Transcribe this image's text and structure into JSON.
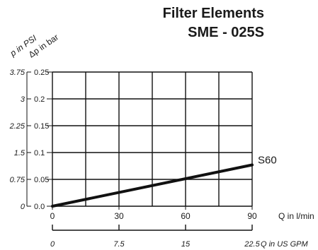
{
  "title": "Filter Elements",
  "subtitle": "SME - 025S",
  "chart_data": {
    "type": "line",
    "title": "Filter Elements SME - 025S",
    "x_axis": {
      "label": "Q in l/min",
      "range": [
        0,
        90
      ],
      "ticks": [
        0,
        30,
        60,
        90
      ]
    },
    "x_axis_secondary": {
      "label": "Q in US GPM",
      "range": [
        0,
        22.5
      ],
      "ticks": [
        "0",
        "7.5",
        "15",
        "22.5"
      ]
    },
    "y_axis": {
      "label": "Δp in bar",
      "range": [
        0,
        0.25
      ],
      "ticks": [
        "0.0",
        "0.05",
        "0.1",
        "0.15",
        "0.2",
        "0.25"
      ]
    },
    "y_axis_secondary": {
      "label": "p in PSI",
      "range": [
        0,
        3.75
      ],
      "ticks": [
        "0",
        "0.75",
        "1.5",
        "2.25",
        "3",
        "3.75"
      ]
    },
    "grid": true,
    "series": [
      {
        "name": "S60",
        "x": [
          0,
          90
        ],
        "y": [
          0,
          0.077
        ]
      }
    ]
  }
}
